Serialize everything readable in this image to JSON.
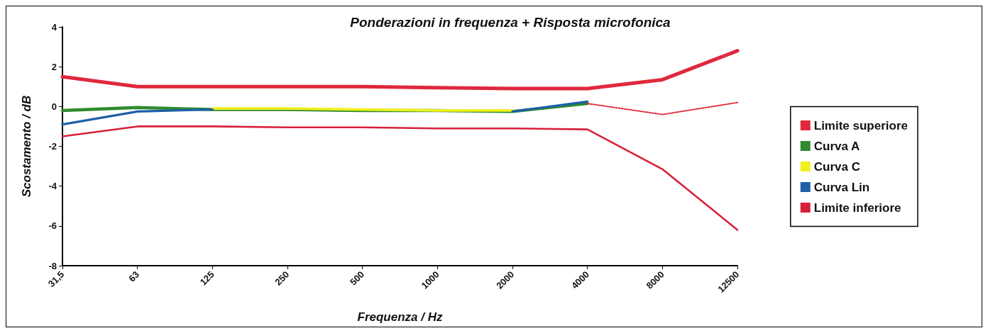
{
  "chart_data": {
    "type": "line",
    "title": "Ponderazioni in frequenza + Risposta microfonica",
    "xlabel": "Frequenza / Hz",
    "ylabel": "Scostamento / dB",
    "categories": [
      "31,5",
      "63",
      "125",
      "250",
      "500",
      "1000",
      "2000",
      "4000",
      "8000",
      "12500"
    ],
    "series": [
      {
        "name": "Limite superiore",
        "color": "#e0283c",
        "values": [
          1.5,
          1.0,
          1.0,
          1.0,
          1.0,
          0.95,
          0.9,
          0.9,
          1.35,
          2.8
        ]
      },
      {
        "name": "Curva A",
        "color": "#2e8b2e",
        "values": [
          -0.2,
          -0.05,
          -0.15,
          -0.15,
          -0.2,
          -0.2,
          -0.25,
          0.15,
          null,
          null
        ]
      },
      {
        "name": "Curva C",
        "color": "#f0f020",
        "values": [
          null,
          null,
          -0.1,
          -0.1,
          -0.15,
          -0.2,
          -0.2,
          null,
          null,
          null
        ]
      },
      {
        "name": "Curva Lin",
        "color": "#1f5fa8",
        "values": [
          -0.9,
          -0.25,
          -0.15,
          null,
          null,
          null,
          -0.25,
          0.25,
          null,
          null
        ]
      },
      {
        "name": "Limite inferiore",
        "color": "#d8203a",
        "values": [
          -1.5,
          -1.0,
          -1.0,
          -1.05,
          -1.05,
          -1.1,
          -1.1,
          -1.15,
          -3.15,
          -6.2
        ]
      },
      {
        "color": "#e0283c",
        "line_style": "dotted",
        "values": [
          null,
          null,
          null,
          null,
          null,
          null,
          null,
          0.15,
          -0.4,
          0.2
        ]
      }
    ],
    "ylim": [
      -8,
      4
    ],
    "yticks": [
      -8,
      -6,
      -4,
      -2,
      0,
      2,
      4
    ],
    "grid": false,
    "legend": "right",
    "marker": "none"
  }
}
